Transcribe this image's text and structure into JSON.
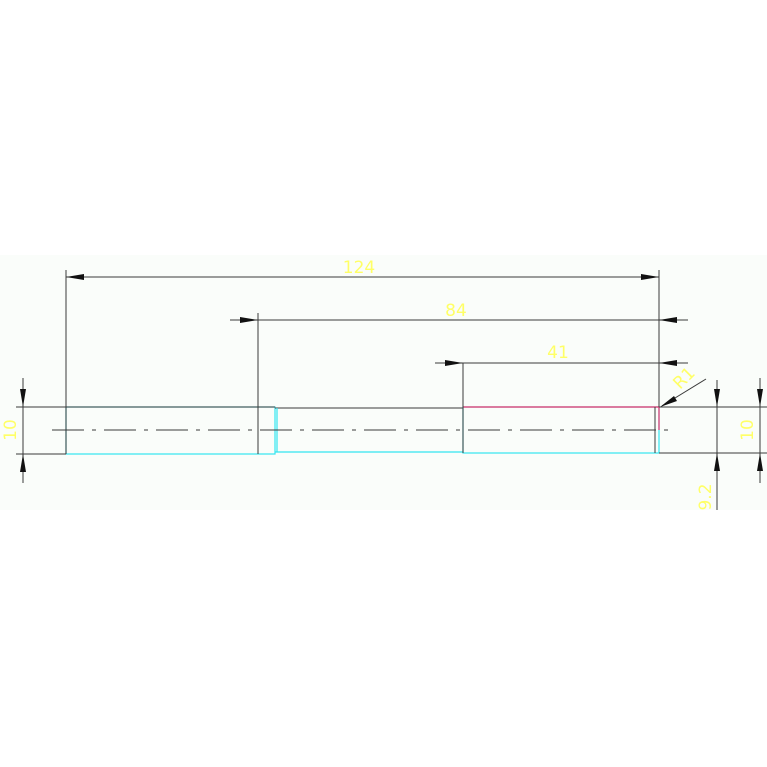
{
  "drawing": {
    "colors": {
      "background": "#fafdfa",
      "outline": "#3a3a3a",
      "cyan_edge": "#33e6f0",
      "red_edge": "#e0306a",
      "dimension_text": "#ffff66"
    },
    "dimensions": {
      "overall_length": "124",
      "step_length": "84",
      "end_length": "41",
      "left_diameter": "10",
      "right_diameter": "10",
      "neck_diameter": "9.2",
      "fillet_radius": "R1"
    }
  }
}
